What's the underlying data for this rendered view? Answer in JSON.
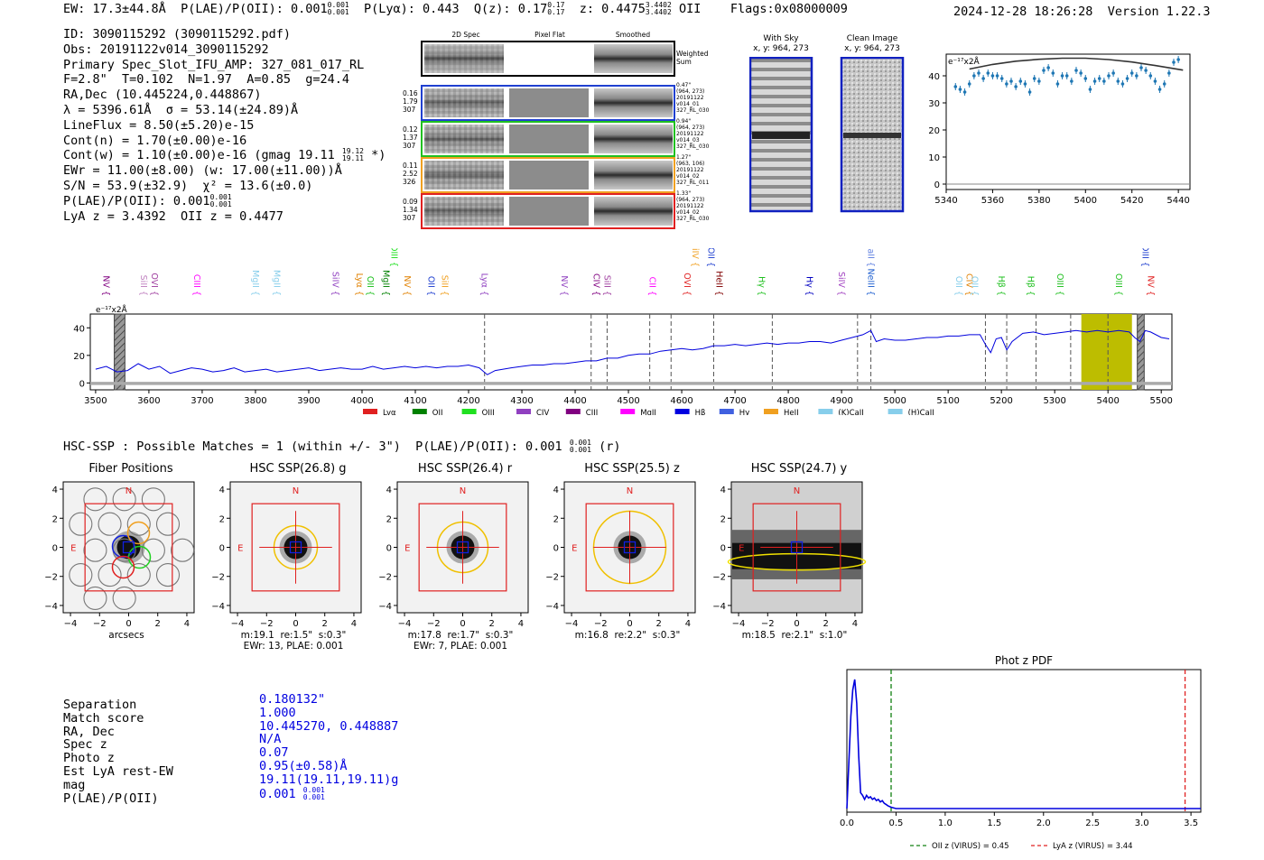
{
  "header": {
    "ew": "EW: 17.3±44.8Å",
    "plae_label": "P(LAE)/P(OII): 0.001",
    "plae_sup": "0.001",
    "plae_sub": "0.001",
    "plya": "P(Lyα): 0.443",
    "qz_label": "Q(z): 0.17",
    "qz_sup": "0.17",
    "qz_sub": "0.17",
    "z_label": "z: 0.4475",
    "z_sup": "3.4402",
    "z_sub": "3.4402",
    "z_line": "OII",
    "flags": "Flags:0x08000009",
    "datetime": "2024-12-28 18:26:28",
    "version": "Version 1.22.3"
  },
  "info": {
    "id": "ID: 3090115292 (3090115292.pdf)",
    "obs": "Obs: 20191122v014_3090115292",
    "primary": "Primary Spec_Slot_IFU_AMP: 327_081_017_RL",
    "fibers": "F=2.8\"  T=0.102  N=1.97  A=0.85  g=24.4",
    "radec": "RA,Dec (10.445224,0.448867)",
    "lambda": "λ = 5396.61Å  σ = 53.14(±24.89)Å",
    "lineflux": "LineFlux = 8.50(±5.20)e-15",
    "contn": "Cont(n) = 1.70(±0.00)e-16",
    "contw_label": "Cont(w) = 1.10(±0.00)e-16 (gmag 19.11",
    "contw_sup": "19.12",
    "contw_sub": "19.11",
    "contw_end": "*)",
    "ewr": "EWr = 11.00(±8.00) (w: 17.00(±11.00))Å",
    "sn": "S/N = 53.9(±32.9)  χ² = 13.6(±0.0)",
    "plae_label": "P(LAE)/P(OII): 0.001",
    "plae_sup": "0.001",
    "plae_sub": "0.001",
    "lya": "LyA z = 3.4392  OII z = 0.4477"
  },
  "cutouts": {
    "col_headers": [
      "2D Spec",
      "Pixel Flat",
      "Smoothed"
    ],
    "weighted_sum": "Weighted\nSum",
    "rows": [
      {
        "left": "0.16\n1.79\n307",
        "right": "0.47\"\n(964, 273)\n20191122\nv014_01\n327_RL_030",
        "color": "#2040d0"
      },
      {
        "left": "0.12\n1.37\n307",
        "right": "0.94\"\n(964, 273)\n20191122\nv014_03\n327_RL_030",
        "color": "#20c020"
      },
      {
        "left": "0.11\n2.52\n326",
        "right": "1.27\"\n(963, 106)\n20191122\nv014_02\n327_RL_011",
        "color": "#f0a020"
      },
      {
        "left": "0.09\n1.34\n307",
        "right": "1.33\"\n(964, 273)\n20191122\nv014_02\n327_RL_030",
        "color": "#e02020"
      }
    ],
    "with_sky": "With Sky",
    "clean_image": "Clean Image",
    "xy": "x, y: 964, 273"
  },
  "small_chart": {
    "type": "scatter",
    "ylabel_note": "e⁻¹⁷x2Å",
    "xlim": [
      5340,
      5445
    ],
    "ylim": [
      -2,
      48
    ],
    "x_ticks": [
      5340,
      5360,
      5380,
      5400,
      5420,
      5440
    ],
    "y_ticks": [
      0,
      10,
      20,
      30,
      40
    ],
    "x": [
      5344,
      5346,
      5348,
      5350,
      5352,
      5354,
      5356,
      5358,
      5360,
      5362,
      5364,
      5366,
      5368,
      5370,
      5372,
      5374,
      5376,
      5378,
      5380,
      5382,
      5384,
      5386,
      5388,
      5390,
      5392,
      5394,
      5396,
      5398,
      5400,
      5402,
      5404,
      5406,
      5408,
      5410,
      5412,
      5414,
      5416,
      5418,
      5420,
      5422,
      5424,
      5426,
      5428,
      5430,
      5432,
      5434,
      5436,
      5438,
      5440
    ],
    "y": [
      36,
      35,
      34,
      37,
      40,
      41,
      39,
      41,
      40,
      40,
      39,
      37,
      38,
      36,
      38,
      37,
      34,
      39,
      38,
      42,
      43,
      41,
      37,
      40,
      40,
      38,
      42,
      41,
      39,
      35,
      38,
      39,
      38,
      40,
      41,
      38,
      37,
      39,
      41,
      40,
      43,
      42,
      40,
      38,
      35,
      37,
      41,
      45,
      46
    ],
    "fit_x": [
      5350,
      5360,
      5370,
      5380,
      5390,
      5400,
      5410,
      5420,
      5430,
      5442
    ],
    "fit_y": [
      42.5,
      44.2,
      45.4,
      46.1,
      46.5,
      46.5,
      46.0,
      45.1,
      43.8,
      42.1
    ]
  },
  "spectrum": {
    "type": "line",
    "ylabel_note": "e⁻¹⁷x2Å",
    "xlim": [
      3490,
      5520
    ],
    "ylim": [
      -5,
      50
    ],
    "x_ticks": [
      3500,
      3600,
      3700,
      3800,
      3900,
      4000,
      4100,
      4200,
      4300,
      4400,
      4500,
      4600,
      4700,
      4800,
      4900,
      5000,
      5100,
      5200,
      5300,
      5400,
      5500
    ],
    "y_ticks": [
      0,
      20,
      40
    ],
    "highlight": [
      5350,
      5445
    ],
    "hatched": [
      [
        3535,
        3555
      ],
      [
        5455,
        5468
      ]
    ],
    "dashed": [
      4230,
      4430,
      4460,
      4540,
      4580,
      4660,
      4770,
      4930,
      4955,
      5170,
      5210,
      5265,
      5330,
      5400,
      5455
    ],
    "series_pts": [
      [
        3500,
        10
      ],
      [
        3520,
        12
      ],
      [
        3540,
        8
      ],
      [
        3560,
        9
      ],
      [
        3580,
        14
      ],
      [
        3600,
        10
      ],
      [
        3620,
        12
      ],
      [
        3640,
        7
      ],
      [
        3660,
        9
      ],
      [
        3680,
        11
      ],
      [
        3700,
        10
      ],
      [
        3720,
        8
      ],
      [
        3740,
        9
      ],
      [
        3760,
        11
      ],
      [
        3780,
        8
      ],
      [
        3800,
        9
      ],
      [
        3820,
        10
      ],
      [
        3840,
        8
      ],
      [
        3860,
        9
      ],
      [
        3880,
        10
      ],
      [
        3900,
        11
      ],
      [
        3920,
        9
      ],
      [
        3940,
        10
      ],
      [
        3960,
        11
      ],
      [
        3980,
        10
      ],
      [
        4000,
        10
      ],
      [
        4020,
        12
      ],
      [
        4040,
        10
      ],
      [
        4060,
        11
      ],
      [
        4080,
        12
      ],
      [
        4100,
        11
      ],
      [
        4120,
        12
      ],
      [
        4140,
        11
      ],
      [
        4160,
        12
      ],
      [
        4180,
        12
      ],
      [
        4200,
        13
      ],
      [
        4220,
        11
      ],
      [
        4235,
        6
      ],
      [
        4250,
        9
      ],
      [
        4280,
        11
      ],
      [
        4300,
        12
      ],
      [
        4320,
        13
      ],
      [
        4340,
        13
      ],
      [
        4360,
        14
      ],
      [
        4380,
        14
      ],
      [
        4400,
        15
      ],
      [
        4420,
        16
      ],
      [
        4440,
        16
      ],
      [
        4460,
        18
      ],
      [
        4480,
        18
      ],
      [
        4500,
        20
      ],
      [
        4520,
        21
      ],
      [
        4540,
        21
      ],
      [
        4560,
        23
      ],
      [
        4580,
        24
      ],
      [
        4600,
        25
      ],
      [
        4620,
        24
      ],
      [
        4640,
        25
      ],
      [
        4660,
        27
      ],
      [
        4680,
        27
      ],
      [
        4700,
        28
      ],
      [
        4720,
        27
      ],
      [
        4740,
        28
      ],
      [
        4760,
        29
      ],
      [
        4780,
        28
      ],
      [
        4800,
        29
      ],
      [
        4820,
        29
      ],
      [
        4840,
        30
      ],
      [
        4860,
        30
      ],
      [
        4880,
        29
      ],
      [
        4900,
        31
      ],
      [
        4920,
        33
      ],
      [
        4940,
        35
      ],
      [
        4955,
        38
      ],
      [
        4965,
        30
      ],
      [
        4980,
        32
      ],
      [
        5000,
        31
      ],
      [
        5020,
        31
      ],
      [
        5040,
        32
      ],
      [
        5060,
        33
      ],
      [
        5080,
        33
      ],
      [
        5100,
        34
      ],
      [
        5120,
        34
      ],
      [
        5140,
        35
      ],
      [
        5160,
        35
      ],
      [
        5170,
        28
      ],
      [
        5180,
        22
      ],
      [
        5190,
        32
      ],
      [
        5200,
        33
      ],
      [
        5210,
        24
      ],
      [
        5220,
        30
      ],
      [
        5240,
        36
      ],
      [
        5260,
        37
      ],
      [
        5280,
        35
      ],
      [
        5300,
        36
      ],
      [
        5320,
        37
      ],
      [
        5340,
        38
      ],
      [
        5360,
        37
      ],
      [
        5380,
        38
      ],
      [
        5400,
        37
      ],
      [
        5420,
        38
      ],
      [
        5440,
        37
      ],
      [
        5450,
        33
      ],
      [
        5460,
        30
      ],
      [
        5470,
        38
      ],
      [
        5480,
        37
      ],
      [
        5500,
        33
      ],
      [
        5515,
        32
      ]
    ],
    "lines": [
      {
        "name": "NV",
        "x": 3520,
        "color": "#800080",
        "tier": 1
      },
      {
        "name": "SiII",
        "x": 3590,
        "color": "#c080c0",
        "tier": 1
      },
      {
        "name": "OVI",
        "x": 3610,
        "color": "#a040a0",
        "tier": 1
      },
      {
        "name": "CIII",
        "x": 3690,
        "color": "#ff00ff",
        "tier": 1
      },
      {
        "name": "MgII",
        "x": 3800,
        "color": "#87ceeb",
        "tier": 1
      },
      {
        "name": "MgII",
        "x": 3840,
        "color": "#87ceeb",
        "tier": 1
      },
      {
        "name": "SiIV",
        "x": 3950,
        "color": "#9040c0",
        "tier": 1
      },
      {
        "name": "Lyα",
        "x": 3995,
        "color": "#e08000",
        "tier": 1
      },
      {
        "name": "OII",
        "x": 4015,
        "color": "#20c020",
        "tier": 1
      },
      {
        "name": "MgII",
        "x": 4045,
        "color": "#008000",
        "tier": 1
      },
      {
        "name": "OIII",
        "x": 4060,
        "color": "#20e020",
        "tier": 0
      },
      {
        "name": "NV",
        "x": 4085,
        "color": "#e08000",
        "tier": 1
      },
      {
        "name": "OII",
        "x": 4130,
        "color": "#2040d0",
        "tier": 1
      },
      {
        "name": "SiII",
        "x": 4155,
        "color": "#f0a020",
        "tier": 1
      },
      {
        "name": "Lyα",
        "x": 4230,
        "color": "#9040c0",
        "tier": 1
      },
      {
        "name": "NV",
        "x": 4380,
        "color": "#9040c0",
        "tier": 1
      },
      {
        "name": "CIV",
        "x": 4440,
        "color": "#800080",
        "tier": 1
      },
      {
        "name": "SiII",
        "x": 4460,
        "color": "#a040a0",
        "tier": 1
      },
      {
        "name": "CII",
        "x": 4545,
        "color": "#ff00ff",
        "tier": 1
      },
      {
        "name": "OVI",
        "x": 4610,
        "color": "#e02020",
        "tier": 1
      },
      {
        "name": "SiIV",
        "x": 4625,
        "color": "#f0a020",
        "tier": 0
      },
      {
        "name": "OII",
        "x": 4655,
        "color": "#2040d0",
        "tier": 0
      },
      {
        "name": "HeII",
        "x": 4670,
        "color": "#800000",
        "tier": 1
      },
      {
        "name": "Hγ",
        "x": 4750,
        "color": "#20c020",
        "tier": 1
      },
      {
        "name": "Hγ",
        "x": 4840,
        "color": "#0000c0",
        "tier": 1
      },
      {
        "name": "SiIV",
        "x": 4900,
        "color": "#a040c0",
        "tier": 1
      },
      {
        "name": "NeIII",
        "x": 4955,
        "color": "#2060d0",
        "tier": 1
      },
      {
        "name": "(H)CaII",
        "x": 4955,
        "color": "#6080e0",
        "tier": 0
      },
      {
        "name": "OII",
        "x": 5120,
        "color": "#87ceeb",
        "tier": 1
      },
      {
        "name": "CIV",
        "x": 5140,
        "color": "#e08000",
        "tier": 1
      },
      {
        "name": "OII",
        "x": 5150,
        "color": "#87ceeb",
        "tier": 1
      },
      {
        "name": "Hβ",
        "x": 5200,
        "color": "#20c020",
        "tier": 1
      },
      {
        "name": "Hβ",
        "x": 5255,
        "color": "#20c020",
        "tier": 1
      },
      {
        "name": "OIII",
        "x": 5310,
        "color": "#20c020",
        "tier": 1
      },
      {
        "name": "OIII",
        "x": 5420,
        "color": "#20c020",
        "tier": 1
      },
      {
        "name": "NV",
        "x": 5480,
        "color": "#e02020",
        "tier": 1
      },
      {
        "name": "OIII",
        "x": 5470,
        "color": "#2040d0",
        "tier": 0
      }
    ],
    "legend": [
      {
        "label": "Lyα",
        "color": "#e02020"
      },
      {
        "label": "OII",
        "color": "#008000"
      },
      {
        "label": "OIII",
        "color": "#20e020"
      },
      {
        "label": "CIV",
        "color": "#9040c0"
      },
      {
        "label": "CIII",
        "color": "#800080"
      },
      {
        "label": "MgII",
        "color": "#ff00ff"
      },
      {
        "label": "Hβ",
        "color": "#0000e0"
      },
      {
        "label": "Hγ",
        "color": "#4060e0"
      },
      {
        "label": "HeII",
        "color": "#f0a020"
      },
      {
        "label": "(K)CaII",
        "color": "#87ceeb"
      },
      {
        "label": "(H)CaII",
        "color": "#87ceeb"
      }
    ]
  },
  "hsc": {
    "heading": "HSC-SSP : Possible Matches = 1 (within +/- 3\")  P(LAE)/P(OII): 0.001",
    "heading_sup": "0.001",
    "heading_sub": "0.001",
    "heading_end": "(r)",
    "tiles": [
      {
        "title": "Fiber Positions",
        "caption": "arcsecs",
        "kind": "fiber"
      },
      {
        "title": "HSC SSP(26.8) g",
        "caption": "m:19.1  re:1.5\"  s:0.3\"\nEWr: 13, PLAE: 0.001",
        "kind": "g"
      },
      {
        "title": "HSC SSP(26.4) r",
        "caption": "m:17.8  re:1.7\"  s:0.3\"\nEWr: 7, PLAE: 0.001",
        "kind": "r"
      },
      {
        "title": "HSC SSP(25.5) z",
        "caption": "m:16.8  re:2.2\"  s:0.3\"",
        "kind": "z"
      },
      {
        "title": "HSC SSP(24.7) y",
        "caption": "m:18.5  re:2.1\"  s:1.0\"",
        "kind": "y"
      }
    ],
    "axis_ticks": [
      -4,
      -2,
      0,
      2,
      4
    ],
    "north": "N",
    "east": "E"
  },
  "match": {
    "labels": [
      "Separation",
      "Match score",
      "RA, Dec",
      "Spec z",
      "Photo z",
      "Est LyA rest-EW",
      "mag",
      "P(LAE)/P(OII)"
    ],
    "values": [
      "0.180132\"",
      "1.000",
      "10.445270, 0.448887",
      "N/A",
      "0.07",
      "0.95(±0.58)Å",
      "19.11(19.11,19.11)g",
      "0.001"
    ],
    "plae_sup": "0.001",
    "plae_sub": "0.001"
  },
  "photz": {
    "type": "line",
    "title": "Phot z PDF",
    "xlim": [
      0,
      3.6
    ],
    "x_ticks": [
      0.0,
      0.5,
      1.0,
      1.5,
      2.0,
      2.5,
      3.0,
      3.5
    ],
    "x_tick_labels": [
      "0.0",
      "0.5",
      "1.0",
      "1.5",
      "2.0",
      "2.5",
      "3.0",
      "3.5"
    ],
    "pdf_x": [
      0.0,
      0.02,
      0.04,
      0.06,
      0.08,
      0.1,
      0.12,
      0.14,
      0.16,
      0.18,
      0.2,
      0.22,
      0.24,
      0.26,
      0.28,
      0.3,
      0.32,
      0.34,
      0.36,
      0.38,
      0.4,
      0.42,
      0.45,
      0.5,
      1.0,
      2.0,
      3.0,
      3.6
    ],
    "pdf_y": [
      0.0,
      0.35,
      0.7,
      0.9,
      0.98,
      0.8,
      0.4,
      0.12,
      0.1,
      0.07,
      0.1,
      0.08,
      0.09,
      0.07,
      0.08,
      0.06,
      0.07,
      0.05,
      0.06,
      0.04,
      0.03,
      0.02,
      0.01,
      0.0,
      0.0,
      0.0,
      0.0,
      0.0
    ],
    "oii_z": 0.45,
    "lya_z": 3.44,
    "legend_oii": "OII z (VIRUS) = 0.45",
    "legend_lya": "LyA z (VIRUS) = 3.44"
  }
}
